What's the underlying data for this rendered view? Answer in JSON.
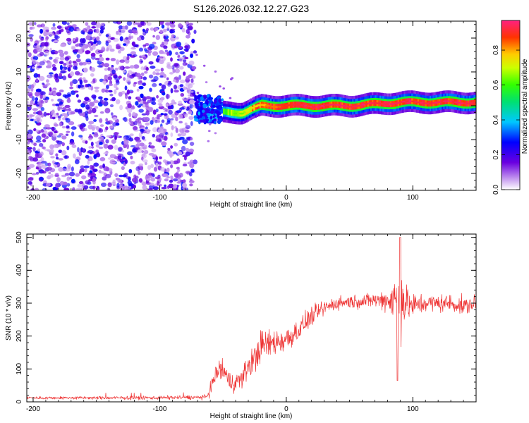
{
  "figure_title": "S126.2026.032.12.27.G23",
  "chart_data": [
    {
      "type": "heatmap",
      "title": "S126.2026.032.12.27.G23",
      "xlabel": "Height of straight line (km)",
      "ylabel": "Frequency (Hz)",
      "xlim": [
        -205,
        150
      ],
      "ylim": [
        -25,
        25
      ],
      "x_ticks": [
        -200,
        -100,
        0,
        100
      ],
      "y_ticks": [
        -20,
        -10,
        0,
        10,
        20
      ],
      "colorbar": {
        "label": "Normalized spectral amplitude",
        "range": [
          0.0,
          0.97
        ],
        "ticks": [
          "0.0",
          "0.2",
          "0.4",
          "0.6",
          "0.8"
        ]
      },
      "regions": [
        {
          "name": "noise",
          "x_range": [
            -205,
            -72
          ],
          "freq_range": [
            -25,
            25
          ],
          "amplitude": [
            0.05,
            0.3
          ]
        },
        {
          "name": "transition",
          "x_range": [
            -72,
            -50
          ],
          "freq_range": [
            -5,
            3
          ],
          "amplitude": [
            0.2,
            0.4
          ]
        },
        {
          "name": "tone",
          "x_range": [
            -50,
            150
          ],
          "center_freq_hz": [
            [
              -50,
              -2
            ],
            [
              -35,
              -2
            ],
            [
              -20,
              0
            ],
            [
              0,
              0
            ],
            [
              50,
              0
            ],
            [
              90,
              1
            ],
            [
              150,
              1
            ]
          ],
          "amplitude": [
            0.3,
            0.97
          ]
        }
      ]
    },
    {
      "type": "line",
      "xlabel": "Height of straight line (km)",
      "ylabel": "SNR (10 * v/v)",
      "xlim": [
        -205,
        150
      ],
      "ylim": [
        0,
        510
      ],
      "x_ticks": [
        -200,
        -100,
        0,
        100
      ],
      "y_ticks": [
        0,
        100,
        200,
        300,
        400,
        500
      ],
      "series": [
        {
          "name": "SNR",
          "color": "#ee3333",
          "envelope_x": [
            -205,
            -120,
            -63,
            -60,
            -55,
            -50,
            -45,
            -40,
            -35,
            -30,
            -25,
            -20,
            -10,
            0,
            10,
            20,
            30,
            40,
            50,
            60,
            70,
            80,
            85,
            90,
            95,
            100,
            110,
            120,
            130,
            140,
            150
          ],
          "envelope_y": [
            12,
            12,
            14,
            40,
            90,
            100,
            60,
            60,
            70,
            110,
            130,
            170,
            180,
            190,
            220,
            260,
            285,
            300,
            305,
            305,
            310,
            310,
            310,
            310,
            300,
            290,
            300,
            300,
            300,
            290,
            300
          ],
          "envelope_spread": [
            6,
            8,
            10,
            30,
            50,
            60,
            50,
            40,
            45,
            55,
            70,
            70,
            60,
            60,
            50,
            40,
            35,
            30,
            30,
            30,
            35,
            50,
            120,
            180,
            80,
            60,
            40,
            40,
            40,
            40,
            35
          ],
          "peak_near_x": 90,
          "peak_value": 500,
          "min_near_x": 88,
          "min_value": 65
        }
      ]
    }
  ]
}
